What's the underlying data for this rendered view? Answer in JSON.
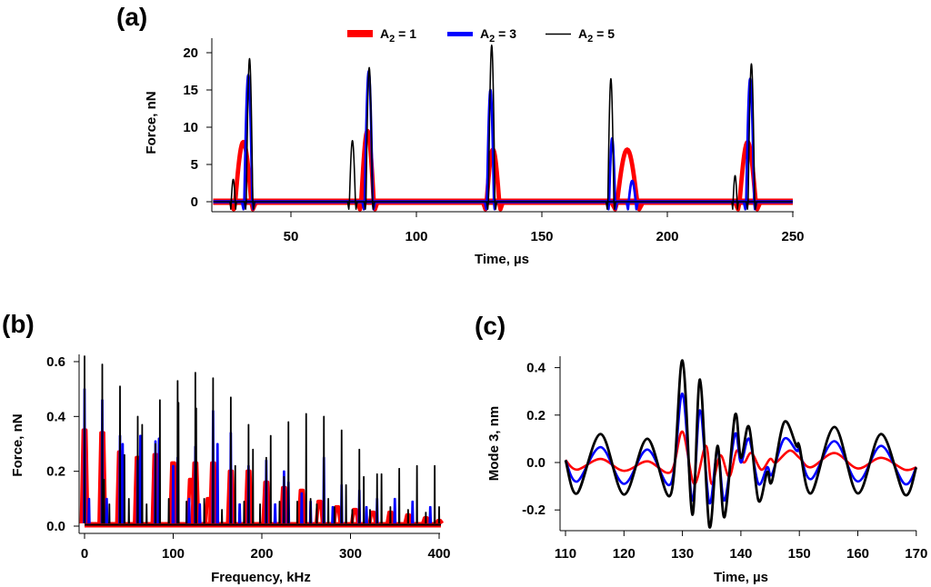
{
  "colors": {
    "A2_1": "#ff0000",
    "A2_3": "#0000ff",
    "A2_5": "#000000"
  },
  "chart_data": [
    {
      "panel": "(a)",
      "type": "line",
      "xlabel": "Time, µs",
      "ylabel": "Force, nN",
      "xlim": [
        18,
        250
      ],
      "ylim": [
        -1,
        21
      ],
      "xticks": [
        "50",
        "100",
        "150",
        "200",
        "250"
      ],
      "yticks": [
        "0",
        "5",
        "10",
        "15",
        "20"
      ],
      "legend": {
        "placement": "top-center",
        "entries": [
          {
            "base": "A",
            "sub": "2",
            "rest": " = 1",
            "series": "A2_1"
          },
          {
            "base": "A",
            "sub": "2",
            "rest": " = 3",
            "series": "A2_3"
          },
          {
            "base": "A",
            "sub": "2",
            "rest": " = 5",
            "series": "A2_5"
          }
        ]
      },
      "series": [
        {
          "name": "A2 = 1",
          "key": "A2_1",
          "baseline": 0,
          "pulses": [
            {
              "t": 31,
              "amp": 8,
              "width": 3.2
            },
            {
              "t": 80.5,
              "amp": 9.5,
              "width": 2.5
            },
            {
              "t": 130.5,
              "amp": 7,
              "width": 2.5
            },
            {
              "t": 184,
              "amp": 7,
              "width": 4
            },
            {
              "t": 232,
              "amp": 8,
              "width": 3.2
            }
          ]
        },
        {
          "name": "A2 = 3",
          "key": "A2_3",
          "baseline": 0,
          "pulses": [
            {
              "t": 33,
              "amp": 17,
              "width": 1.6
            },
            {
              "t": 81,
              "amp": 17.5,
              "width": 1.6
            },
            {
              "t": 129.5,
              "amp": 15,
              "width": 1.4
            },
            {
              "t": 178,
              "amp": 8.5,
              "width": 1.2
            },
            {
              "t": 186,
              "amp": 2.8,
              "width": 1.4
            },
            {
              "t": 233,
              "amp": 16.5,
              "width": 1.6
            }
          ]
        },
        {
          "name": "A2 = 5",
          "key": "A2_5",
          "baseline": 0,
          "pulses": [
            {
              "t": 27,
              "amp": 3,
              "width": 0.8
            },
            {
              "t": 33.5,
              "amp": 19.2,
              "width": 1.3
            },
            {
              "t": 74.5,
              "amp": 8.2,
              "width": 1.2
            },
            {
              "t": 81.2,
              "amp": 18,
              "width": 1.3
            },
            {
              "t": 130,
              "amp": 21,
              "width": 1.3
            },
            {
              "t": 177.5,
              "amp": 16.5,
              "width": 1.2
            },
            {
              "t": 227,
              "amp": 3.5,
              "width": 0.8
            },
            {
              "t": 233.5,
              "amp": 18.5,
              "width": 1.3
            }
          ]
        }
      ]
    },
    {
      "panel": "(b)",
      "type": "line",
      "xlabel": "Frequency, kHz",
      "ylabel": "Force, nN",
      "xlim": [
        0,
        400
      ],
      "ylim": [
        0,
        0.62
      ],
      "xticks": [
        "0",
        "100",
        "200",
        "300",
        "400"
      ],
      "yticks": [
        "0.0",
        "0.2",
        "0.4",
        "0.6"
      ],
      "series": [
        {
          "name": "A2 = 1",
          "key": "A2_1",
          "peaks": [
            [
              0,
              0.35
            ],
            [
              20,
              0.34
            ],
            [
              40,
              0.27
            ],
            [
              60,
              0.25
            ],
            [
              80,
              0.26
            ],
            [
              100,
              0.23
            ],
            [
              120,
              0.17
            ],
            [
              125,
              0.23
            ],
            [
              140,
              0.1
            ],
            [
              145,
              0.23
            ],
            [
              165,
              0.2
            ],
            [
              185,
              0.2
            ],
            [
              205,
              0.16
            ],
            [
              225,
              0.14
            ],
            [
              245,
              0.13
            ],
            [
              265,
              0.09
            ],
            [
              285,
              0.07
            ],
            [
              305,
              0.06
            ],
            [
              325,
              0.05
            ],
            [
              345,
              0.05
            ],
            [
              365,
              0.04
            ],
            [
              385,
              0.03
            ],
            [
              400,
              0.02
            ]
          ]
        },
        {
          "name": "A2 = 3",
          "key": "A2_3",
          "peaks": [
            [
              0,
              0.5
            ],
            [
              5,
              0.1
            ],
            [
              20,
              0.46
            ],
            [
              25,
              0.1
            ],
            [
              40,
              0.33
            ],
            [
              43,
              0.3
            ],
            [
              60,
              0.24
            ],
            [
              63,
              0.33
            ],
            [
              80,
              0.31
            ],
            [
              84,
              0.32
            ],
            [
              100,
              0.22
            ],
            [
              105,
              0.25
            ],
            [
              118,
              0.1
            ],
            [
              125,
              0.29
            ],
            [
              130,
              0.08
            ],
            [
              145,
              0.42
            ],
            [
              150,
              0.3
            ],
            [
              165,
              0.34
            ],
            [
              175,
              0.08
            ],
            [
              185,
              0.22
            ],
            [
              205,
              0.24
            ],
            [
              215,
              0.08
            ],
            [
              225,
              0.2
            ],
            [
              230,
              0.16
            ],
            [
              245,
              0.12
            ],
            [
              255,
              0.09
            ],
            [
              270,
              0.25
            ],
            [
              280,
              0.07
            ],
            [
              290,
              0.15
            ],
            [
              310,
              0.13
            ],
            [
              318,
              0.07
            ],
            [
              330,
              0.1
            ],
            [
              350,
              0.1
            ],
            [
              370,
              0.09
            ],
            [
              390,
              0.07
            ]
          ]
        },
        {
          "name": "A2 = 5",
          "key": "A2_5",
          "peaks": [
            [
              0,
              0.62
            ],
            [
              20,
              0.59
            ],
            [
              22,
              0.17
            ],
            [
              28,
              0.08
            ],
            [
              40,
              0.51
            ],
            [
              45,
              0.26
            ],
            [
              50,
              0.1
            ],
            [
              60,
              0.4
            ],
            [
              65,
              0.37
            ],
            [
              70,
              0.08
            ],
            [
              80,
              0.3
            ],
            [
              85,
              0.46
            ],
            [
              95,
              0.1
            ],
            [
              105,
              0.53
            ],
            [
              106,
              0.45
            ],
            [
              115,
              0.09
            ],
            [
              125,
              0.56
            ],
            [
              126,
              0.43
            ],
            [
              135,
              0.1
            ],
            [
              145,
              0.54
            ],
            [
              155,
              0.06
            ],
            [
              165,
              0.47
            ],
            [
              170,
              0.22
            ],
            [
              180,
              0.09
            ],
            [
              185,
              0.37
            ],
            [
              190,
              0.28
            ],
            [
              198,
              0.08
            ],
            [
              205,
              0.25
            ],
            [
              210,
              0.33
            ],
            [
              220,
              0.09
            ],
            [
              225,
              0.18
            ],
            [
              230,
              0.38
            ],
            [
              240,
              0.09
            ],
            [
              250,
              0.41
            ],
            [
              255,
              0.1
            ],
            [
              262,
              0.08
            ],
            [
              270,
              0.4
            ],
            [
              275,
              0.1
            ],
            [
              282,
              0.07
            ],
            [
              290,
              0.35
            ],
            [
              295,
              0.15
            ],
            [
              302,
              0.06
            ],
            [
              310,
              0.28
            ],
            [
              315,
              0.18
            ],
            [
              322,
              0.06
            ],
            [
              330,
              0.19
            ],
            [
              335,
              0.19
            ],
            [
              345,
              0.07
            ],
            [
              355,
              0.21
            ],
            [
              365,
              0.06
            ],
            [
              375,
              0.22
            ],
            [
              385,
              0.05
            ],
            [
              395,
              0.22
            ],
            [
              400,
              0.07
            ]
          ]
        }
      ]
    },
    {
      "panel": "(c)",
      "type": "line",
      "xlabel": "Time, µs",
      "ylabel": "Mode 3, nm",
      "xlim": [
        110,
        170
      ],
      "ylim": [
        -0.29,
        0.45
      ],
      "xticks": [
        "110",
        "120",
        "130",
        "140",
        "150",
        "160",
        "170"
      ],
      "yticks": [
        "-0.2",
        "0.0",
        "0.2",
        "0.4"
      ],
      "series": [
        {
          "name": "A2 = 1",
          "key": "A2_1",
          "points": [
            [
              110,
              0.01
            ],
            [
              112,
              -0.03
            ],
            [
              116,
              0.015
            ],
            [
              120,
              -0.035
            ],
            [
              124,
              0.005
            ],
            [
              128,
              -0.04
            ],
            [
              130,
              0.13
            ],
            [
              132,
              -0.09
            ],
            [
              134,
              0.07
            ],
            [
              135,
              -0.09
            ],
            [
              136.5,
              0.03
            ],
            [
              138,
              -0.06
            ],
            [
              139.3,
              0.05
            ],
            [
              140.5,
              0
            ],
            [
              141.8,
              0.04
            ],
            [
              143.5,
              -0.03
            ],
            [
              145,
              0.015
            ],
            [
              146,
              0
            ],
            [
              148.3,
              0.05
            ],
            [
              150,
              0.02
            ],
            [
              152,
              -0.02
            ],
            [
              156,
              0.04
            ],
            [
              160,
              -0.025
            ],
            [
              164,
              0.02
            ],
            [
              168,
              -0.03
            ],
            [
              170,
              -0.02
            ]
          ]
        },
        {
          "name": "A2 = 3",
          "key": "A2_3",
          "points": [
            [
              110,
              0.01
            ],
            [
              112,
              -0.08
            ],
            [
              116,
              0.065
            ],
            [
              120,
              -0.09
            ],
            [
              124,
              0.055
            ],
            [
              128,
              -0.09
            ],
            [
              130,
              0.29
            ],
            [
              131.7,
              -0.16
            ],
            [
              133,
              0.22
            ],
            [
              134.6,
              -0.17
            ],
            [
              136,
              0.05
            ],
            [
              137.2,
              -0.16
            ],
            [
              139,
              0.12
            ],
            [
              140,
              0
            ],
            [
              141.4,
              0.1
            ],
            [
              143,
              -0.09
            ],
            [
              144.5,
              -0.02
            ],
            [
              145.3,
              -0.05
            ],
            [
              147.4,
              0.1
            ],
            [
              149.5,
              0.05
            ],
            [
              150,
              0.05
            ],
            [
              152,
              -0.07
            ],
            [
              156,
              0.09
            ],
            [
              160,
              -0.08
            ],
            [
              164,
              0.07
            ],
            [
              168,
              -0.09
            ],
            [
              170,
              -0.02
            ]
          ]
        },
        {
          "name": "A2 = 5",
          "key": "A2_5",
          "points": [
            [
              110,
              0.01
            ],
            [
              112,
              -0.13
            ],
            [
              116,
              0.12
            ],
            [
              120,
              -0.135
            ],
            [
              124,
              0.1
            ],
            [
              128,
              -0.135
            ],
            [
              130,
              0.43
            ],
            [
              131.7,
              -0.22
            ],
            [
              133,
              0.35
            ],
            [
              134.6,
              -0.27
            ],
            [
              136,
              0.07
            ],
            [
              137.2,
              -0.23
            ],
            [
              139,
              0.2
            ],
            [
              140,
              0.02
            ],
            [
              141.4,
              0.15
            ],
            [
              143,
              -0.16
            ],
            [
              144.5,
              -0.04
            ],
            [
              145.3,
              -0.08
            ],
            [
              147.4,
              0.17
            ],
            [
              149.5,
              0.07
            ],
            [
              150,
              0.07
            ],
            [
              152,
              -0.13
            ],
            [
              156,
              0.15
            ],
            [
              160,
              -0.13
            ],
            [
              164,
              0.12
            ],
            [
              168,
              -0.135
            ],
            [
              170,
              -0.02
            ]
          ]
        }
      ]
    }
  ]
}
